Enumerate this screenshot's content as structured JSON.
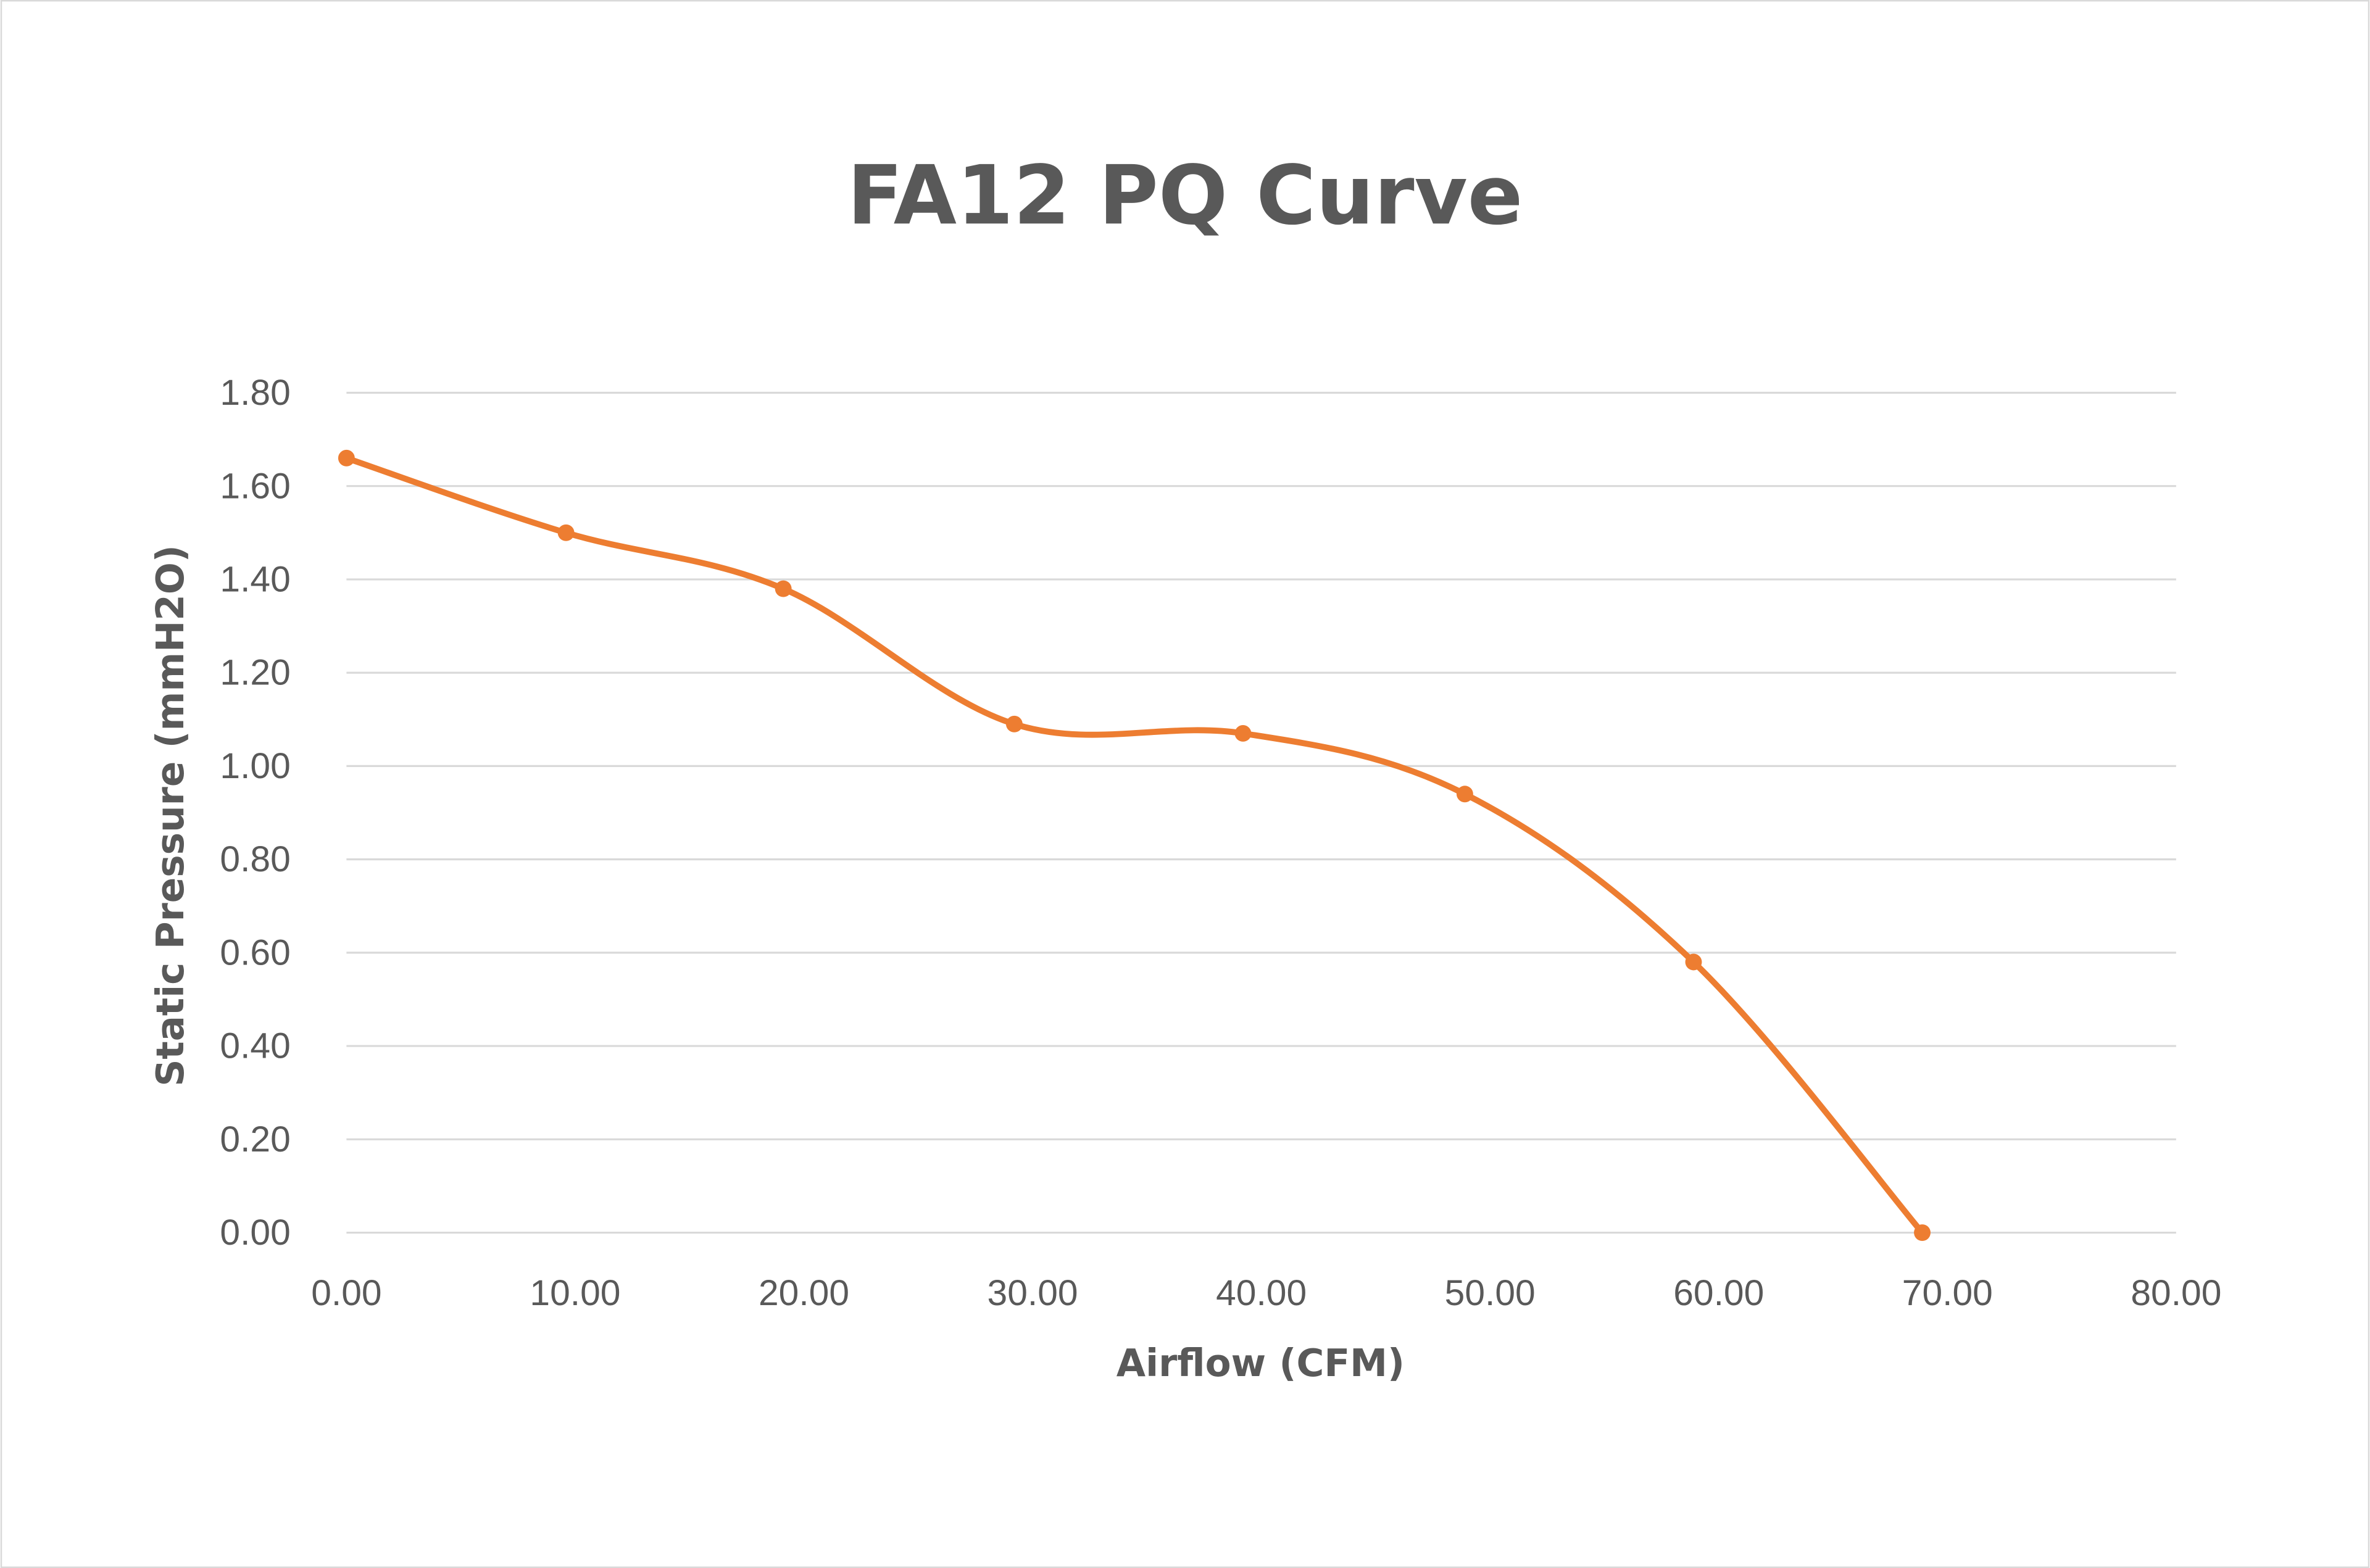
{
  "chart_data": {
    "type": "line",
    "title": "FA12 PQ Curve",
    "xlabel": "Airflow (CFM)",
    "ylabel": "Static Pressure (mmH2O)",
    "xlim": [
      0,
      80
    ],
    "ylim": [
      0,
      1.8
    ],
    "x_ticks": [
      "0.00",
      "10.00",
      "20.00",
      "30.00",
      "40.00",
      "50.00",
      "60.00",
      "70.00",
      "80.00"
    ],
    "y_ticks": [
      "0.00",
      "0.20",
      "0.40",
      "0.60",
      "0.80",
      "1.00",
      "1.20",
      "1.40",
      "1.60",
      "1.80"
    ],
    "grid": "horizontal",
    "smooth": true,
    "series": [
      {
        "name": "FA12",
        "color": "#ED7D31",
        "x": [
          0.0,
          9.6,
          19.1,
          29.2,
          39.2,
          48.9,
          58.9,
          68.9
        ],
        "y": [
          1.66,
          1.5,
          1.38,
          1.09,
          1.07,
          0.94,
          0.58,
          0.0
        ]
      }
    ]
  }
}
